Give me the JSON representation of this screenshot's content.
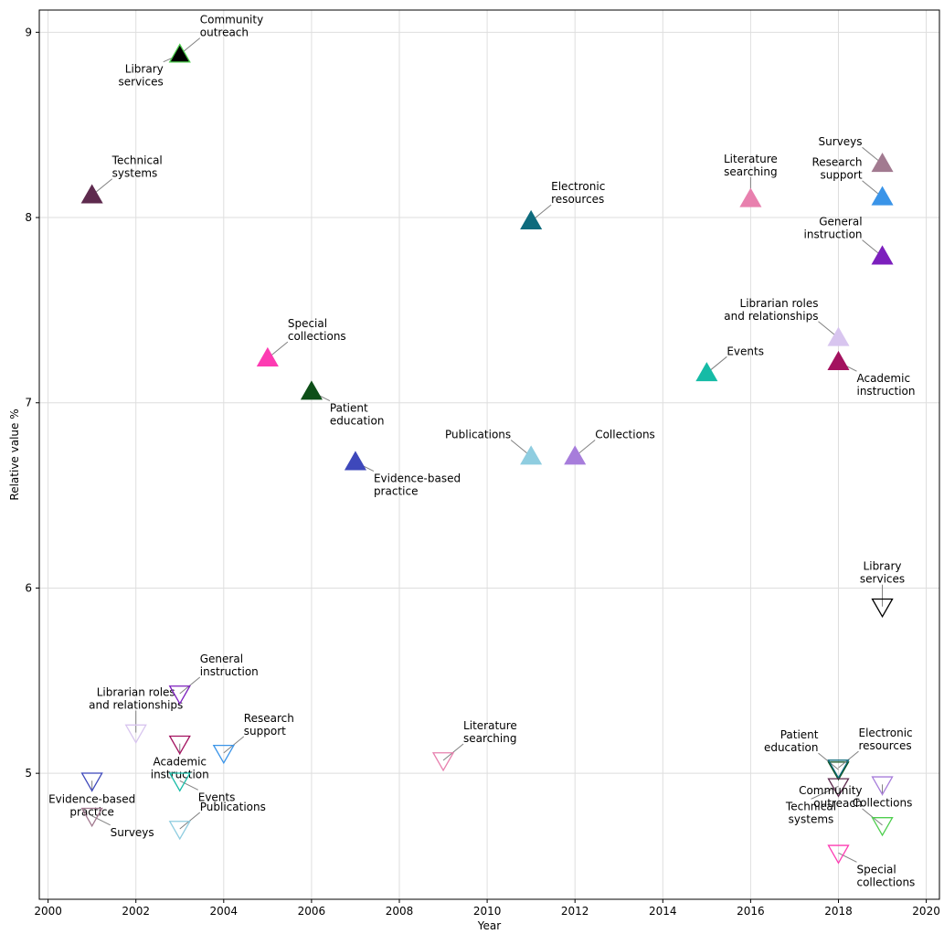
{
  "chart_data": {
    "type": "scatter",
    "xlabel": "Year",
    "ylabel": "Relative value %",
    "xlim": [
      1999.8,
      2020.3
    ],
    "ylim": [
      4.32,
      9.12
    ],
    "xticks": [
      2000,
      2002,
      2004,
      2006,
      2008,
      2010,
      2012,
      2014,
      2016,
      2018,
      2020
    ],
    "yticks": [
      5,
      6,
      7,
      8,
      9
    ],
    "grid": true,
    "points": [
      {
        "label": [
          "Community",
          "outreach"
        ],
        "x": 2003,
        "y": 8.88,
        "marker": "up",
        "filled": true,
        "color": "#000000",
        "edge": "#4ece4e",
        "lpos": "ur"
      },
      {
        "label": [
          "Library",
          "services"
        ],
        "x": 2003,
        "y": 8.88,
        "marker": "up",
        "filled": true,
        "color": "#000000",
        "edge": "#4ece4e",
        "lpos": "ll"
      },
      {
        "label": [
          "Technical",
          "systems"
        ],
        "x": 2001,
        "y": 8.12,
        "marker": "up",
        "filled": true,
        "color": "#5e2a4e",
        "lpos": "ur"
      },
      {
        "label": [
          "Special",
          "collections"
        ],
        "x": 2005,
        "y": 7.24,
        "marker": "up",
        "filled": true,
        "color": "#fd3bb2",
        "lpos": "ur"
      },
      {
        "label": [
          "Patient",
          "education"
        ],
        "x": 2006,
        "y": 7.06,
        "marker": "up",
        "filled": true,
        "color": "#0d4f18",
        "lpos": "lr"
      },
      {
        "label": [
          "Evidence-based",
          "practice"
        ],
        "x": 2007,
        "y": 6.68,
        "marker": "up",
        "filled": true,
        "color": "#3e48bb",
        "lpos": "lr"
      },
      {
        "label": [
          "Electronic",
          "resources"
        ],
        "x": 2011,
        "y": 7.98,
        "marker": "up",
        "filled": true,
        "color": "#0e6b7d",
        "lpos": "ur"
      },
      {
        "label": [
          "Publications"
        ],
        "x": 2011,
        "y": 6.71,
        "marker": "up",
        "filled": true,
        "color": "#8fcde0",
        "lpos": "ul"
      },
      {
        "label": [
          "Collections"
        ],
        "x": 2012,
        "y": 6.71,
        "marker": "up",
        "filled": true,
        "color": "#a77ddb",
        "lpos": "ur"
      },
      {
        "label": [
          "Events"
        ],
        "x": 2015,
        "y": 7.16,
        "marker": "up",
        "filled": true,
        "color": "#16bba6",
        "lpos": "ur"
      },
      {
        "label": [
          "Literature",
          "searching"
        ],
        "x": 2016,
        "y": 8.1,
        "marker": "up",
        "filled": true,
        "color": "#e880ae",
        "lpos": "u"
      },
      {
        "label": [
          "Librarian roles",
          "and relationships"
        ],
        "x": 2018,
        "y": 7.35,
        "marker": "up",
        "filled": true,
        "color": "#d8c5ef",
        "lpos": "ul"
      },
      {
        "label": [
          "Academic",
          "instruction"
        ],
        "x": 2018,
        "y": 7.22,
        "marker": "up",
        "filled": true,
        "color": "#a3125f",
        "lpos": "lr"
      },
      {
        "label": [
          "Surveys"
        ],
        "x": 2019,
        "y": 8.29,
        "marker": "up",
        "filled": true,
        "color": "#a27a90",
        "lpos": "ul"
      },
      {
        "label": [
          "Research",
          "support"
        ],
        "x": 2019,
        "y": 8.11,
        "marker": "up",
        "filled": true,
        "color": "#3a94e8",
        "lpos": "ul"
      },
      {
        "label": [
          "General",
          "instruction"
        ],
        "x": 2019,
        "y": 7.79,
        "marker": "up",
        "filled": true,
        "color": "#7c1fbd",
        "lpos": "ul"
      },
      {
        "label": [
          "Library",
          "services"
        ],
        "x": 2019,
        "y": 5.9,
        "marker": "down",
        "filled": false,
        "color": "#000000",
        "lpos": "u"
      },
      {
        "label": [
          "Librarian roles",
          "and relationships"
        ],
        "x": 2002,
        "y": 5.22,
        "marker": "down",
        "filled": false,
        "color": "#d8c5ef",
        "lpos": "u"
      },
      {
        "label": [
          "General",
          "instruction"
        ],
        "x": 2003,
        "y": 5.43,
        "marker": "down",
        "filled": false,
        "color": "#7c1fbd",
        "lpos": "ur"
      },
      {
        "label": [
          "Academic",
          "instruction"
        ],
        "x": 2003,
        "y": 5.16,
        "marker": "down",
        "filled": false,
        "color": "#a3125f",
        "lpos": "d"
      },
      {
        "label": [
          "Research",
          "support"
        ],
        "x": 2004,
        "y": 5.11,
        "marker": "down",
        "filled": false,
        "color": "#3a94e8",
        "lpos": "ur"
      },
      {
        "label": [
          "Evidence-based",
          "practice"
        ],
        "x": 2001,
        "y": 4.96,
        "marker": "down",
        "filled": false,
        "color": "#3e48bb",
        "lpos": "d"
      },
      {
        "label": [
          "Events"
        ],
        "x": 2003,
        "y": 4.96,
        "marker": "down",
        "filled": false,
        "color": "#16bba6",
        "lpos": "lr"
      },
      {
        "label": [
          "Surveys"
        ],
        "x": 2001,
        "y": 4.77,
        "marker": "down",
        "filled": false,
        "color": "#a27a90",
        "lpos": "lr"
      },
      {
        "label": [
          "Publications"
        ],
        "x": 2003,
        "y": 4.7,
        "marker": "down",
        "filled": false,
        "color": "#8fcde0",
        "lpos": "ur"
      },
      {
        "label": [
          "Literature",
          "searching"
        ],
        "x": 2009,
        "y": 5.07,
        "marker": "down",
        "filled": false,
        "color": "#e880ae",
        "lpos": "ur"
      },
      {
        "label": [
          "Patient",
          "education"
        ],
        "x": 2018,
        "y": 5.02,
        "marker": "down",
        "filled": false,
        "color": "#0d4f18",
        "lpos": "ul"
      },
      {
        "label": [
          "Electronic",
          "resources"
        ],
        "x": 2018,
        "y": 5.03,
        "marker": "down",
        "filled": false,
        "color": "#0e6b7d",
        "lpos": "ur"
      },
      {
        "label": [
          "Technical",
          "systems"
        ],
        "x": 2018,
        "y": 4.93,
        "marker": "down",
        "filled": false,
        "color": "#5e2a4e",
        "lpos": "dl"
      },
      {
        "label": [
          "Collections"
        ],
        "x": 2019,
        "y": 4.94,
        "marker": "down",
        "filled": false,
        "color": "#a77ddb",
        "lpos": "d"
      },
      {
        "label": [
          "Community",
          "outreach"
        ],
        "x": 2019,
        "y": 4.72,
        "marker": "down",
        "filled": false,
        "color": "#4ece4e",
        "lpos": "ul"
      },
      {
        "label": [
          "Special",
          "collections"
        ],
        "x": 2018,
        "y": 4.57,
        "marker": "down",
        "filled": false,
        "color": "#fd3bb2",
        "lpos": "lr"
      }
    ]
  }
}
